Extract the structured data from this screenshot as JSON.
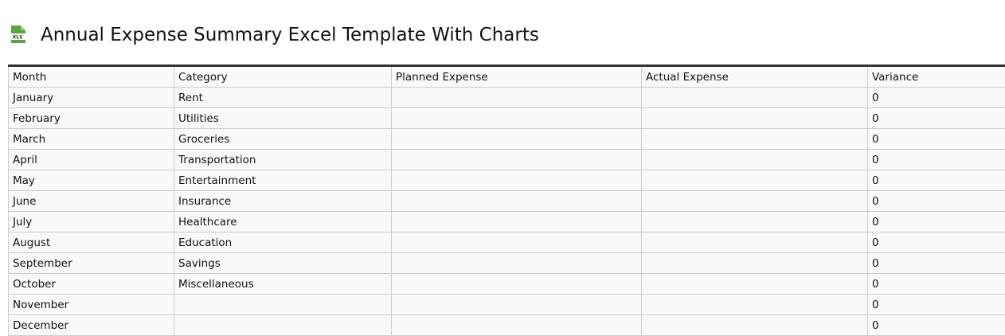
{
  "header": {
    "title": "Annual Expense Summary Excel Template With Charts"
  },
  "table": {
    "columns": [
      "Month",
      "Category",
      "Planned Expense",
      "Actual Expense",
      "Variance"
    ],
    "rows": [
      [
        "January",
        "Rent",
        null,
        null,
        0
      ],
      [
        "February",
        "Utilities",
        null,
        null,
        0
      ],
      [
        "March",
        "Groceries",
        null,
        null,
        0
      ],
      [
        "April",
        "Transportation",
        null,
        null,
        0
      ],
      [
        "May",
        "Entertainment",
        null,
        null,
        0
      ],
      [
        "June",
        "Insurance",
        null,
        null,
        0
      ],
      [
        "July",
        "Healthcare",
        null,
        null,
        0
      ],
      [
        "August",
        "Education",
        null,
        null,
        0
      ],
      [
        "September",
        "Savings",
        null,
        null,
        0
      ],
      [
        "October",
        "Miscellaneous",
        null,
        null,
        0
      ],
      [
        "November",
        null,
        null,
        null,
        0
      ],
      [
        "December",
        null,
        null,
        null,
        0
      ]
    ]
  }
}
